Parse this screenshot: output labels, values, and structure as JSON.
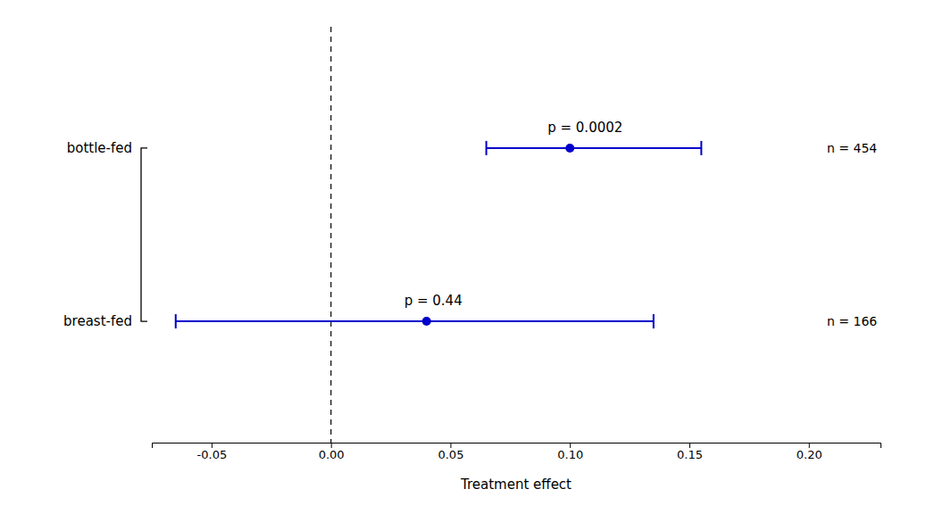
{
  "chart_data": {
    "type": "forest",
    "orientation": "horizontal",
    "categories": [
      "bottle-fed",
      "breast-fed"
    ],
    "values": [
      0.1,
      0.04
    ],
    "ci_lower": [
      0.065,
      -0.065
    ],
    "ci_upper": [
      0.155,
      0.135
    ],
    "annotations": [
      "p = 0.0002",
      "p = 0.44"
    ],
    "n_labels": [
      "n = 454",
      "n = 166"
    ],
    "color": "#0000cc",
    "reference_line": 0.0,
    "xlabel": "Treatment effect",
    "xlim": [
      -0.075,
      0.23
    ],
    "xticks": [
      -0.05,
      {
        "value": 0.0,
        "label": "0.00"
      },
      0.05,
      {
        "value": 0.1,
        "label": "0.10"
      },
      0.15,
      {
        "value": 0.2,
        "label": "0.20"
      }
    ],
    "grid": false
  }
}
